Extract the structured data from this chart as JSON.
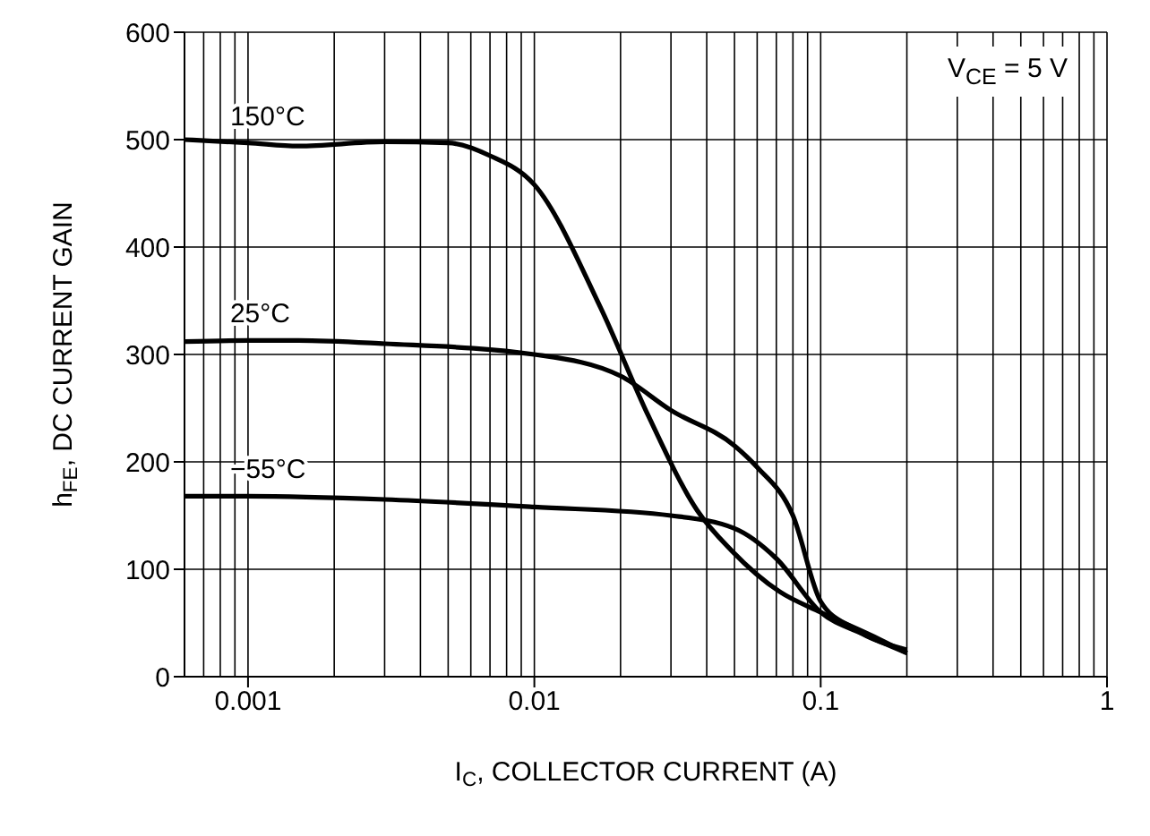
{
  "chart_data": {
    "type": "line",
    "xlabel": "I$_{C}$, COLLECTOR CURRENT (A)",
    "ylabel": "h$_{FE}$, DC CURRENT GAIN",
    "log": "x",
    "xlim": [
      0.0006,
      1
    ],
    "xticks": [
      0.001,
      0.01,
      0.1,
      1
    ],
    "ylim": [
      0,
      600
    ],
    "yticks": [
      0,
      100,
      200,
      300,
      400,
      500,
      600
    ],
    "grid": true,
    "marker": "none",
    "line_style": "solid",
    "annotations": [
      "V$_{CE}$ = 5 V"
    ],
    "series": [
      {
        "name": "150°C",
        "color": "#000000",
        "x": [
          0.0006,
          0.001,
          0.0015,
          0.003,
          0.005,
          0.007,
          0.01,
          0.017,
          0.025,
          0.037,
          0.049,
          0.072,
          0.1,
          0.16,
          0.2
        ],
        "values": [
          500,
          497,
          494,
          498,
          497,
          485,
          458,
          344,
          243,
          155,
          117,
          79,
          60,
          35,
          22
        ]
      },
      {
        "name": "25°C",
        "color": "#000000",
        "x": [
          0.0006,
          0.001,
          0.0015,
          0.003,
          0.01,
          0.02,
          0.03,
          0.05,
          0.06,
          0.08,
          0.1,
          0.13,
          0.2
        ],
        "values": [
          312,
          313,
          313,
          310,
          300,
          280,
          248,
          215,
          195,
          150,
          70,
          45,
          25
        ]
      },
      {
        "name": "−55°C",
        "color": "#000000",
        "x": [
          0.0006,
          0.001,
          0.003,
          0.01,
          0.03,
          0.05,
          0.07,
          0.1,
          0.14,
          0.2
        ],
        "values": [
          168,
          168,
          165,
          158,
          150,
          138,
          110,
          60,
          40,
          22
        ]
      }
    ]
  }
}
